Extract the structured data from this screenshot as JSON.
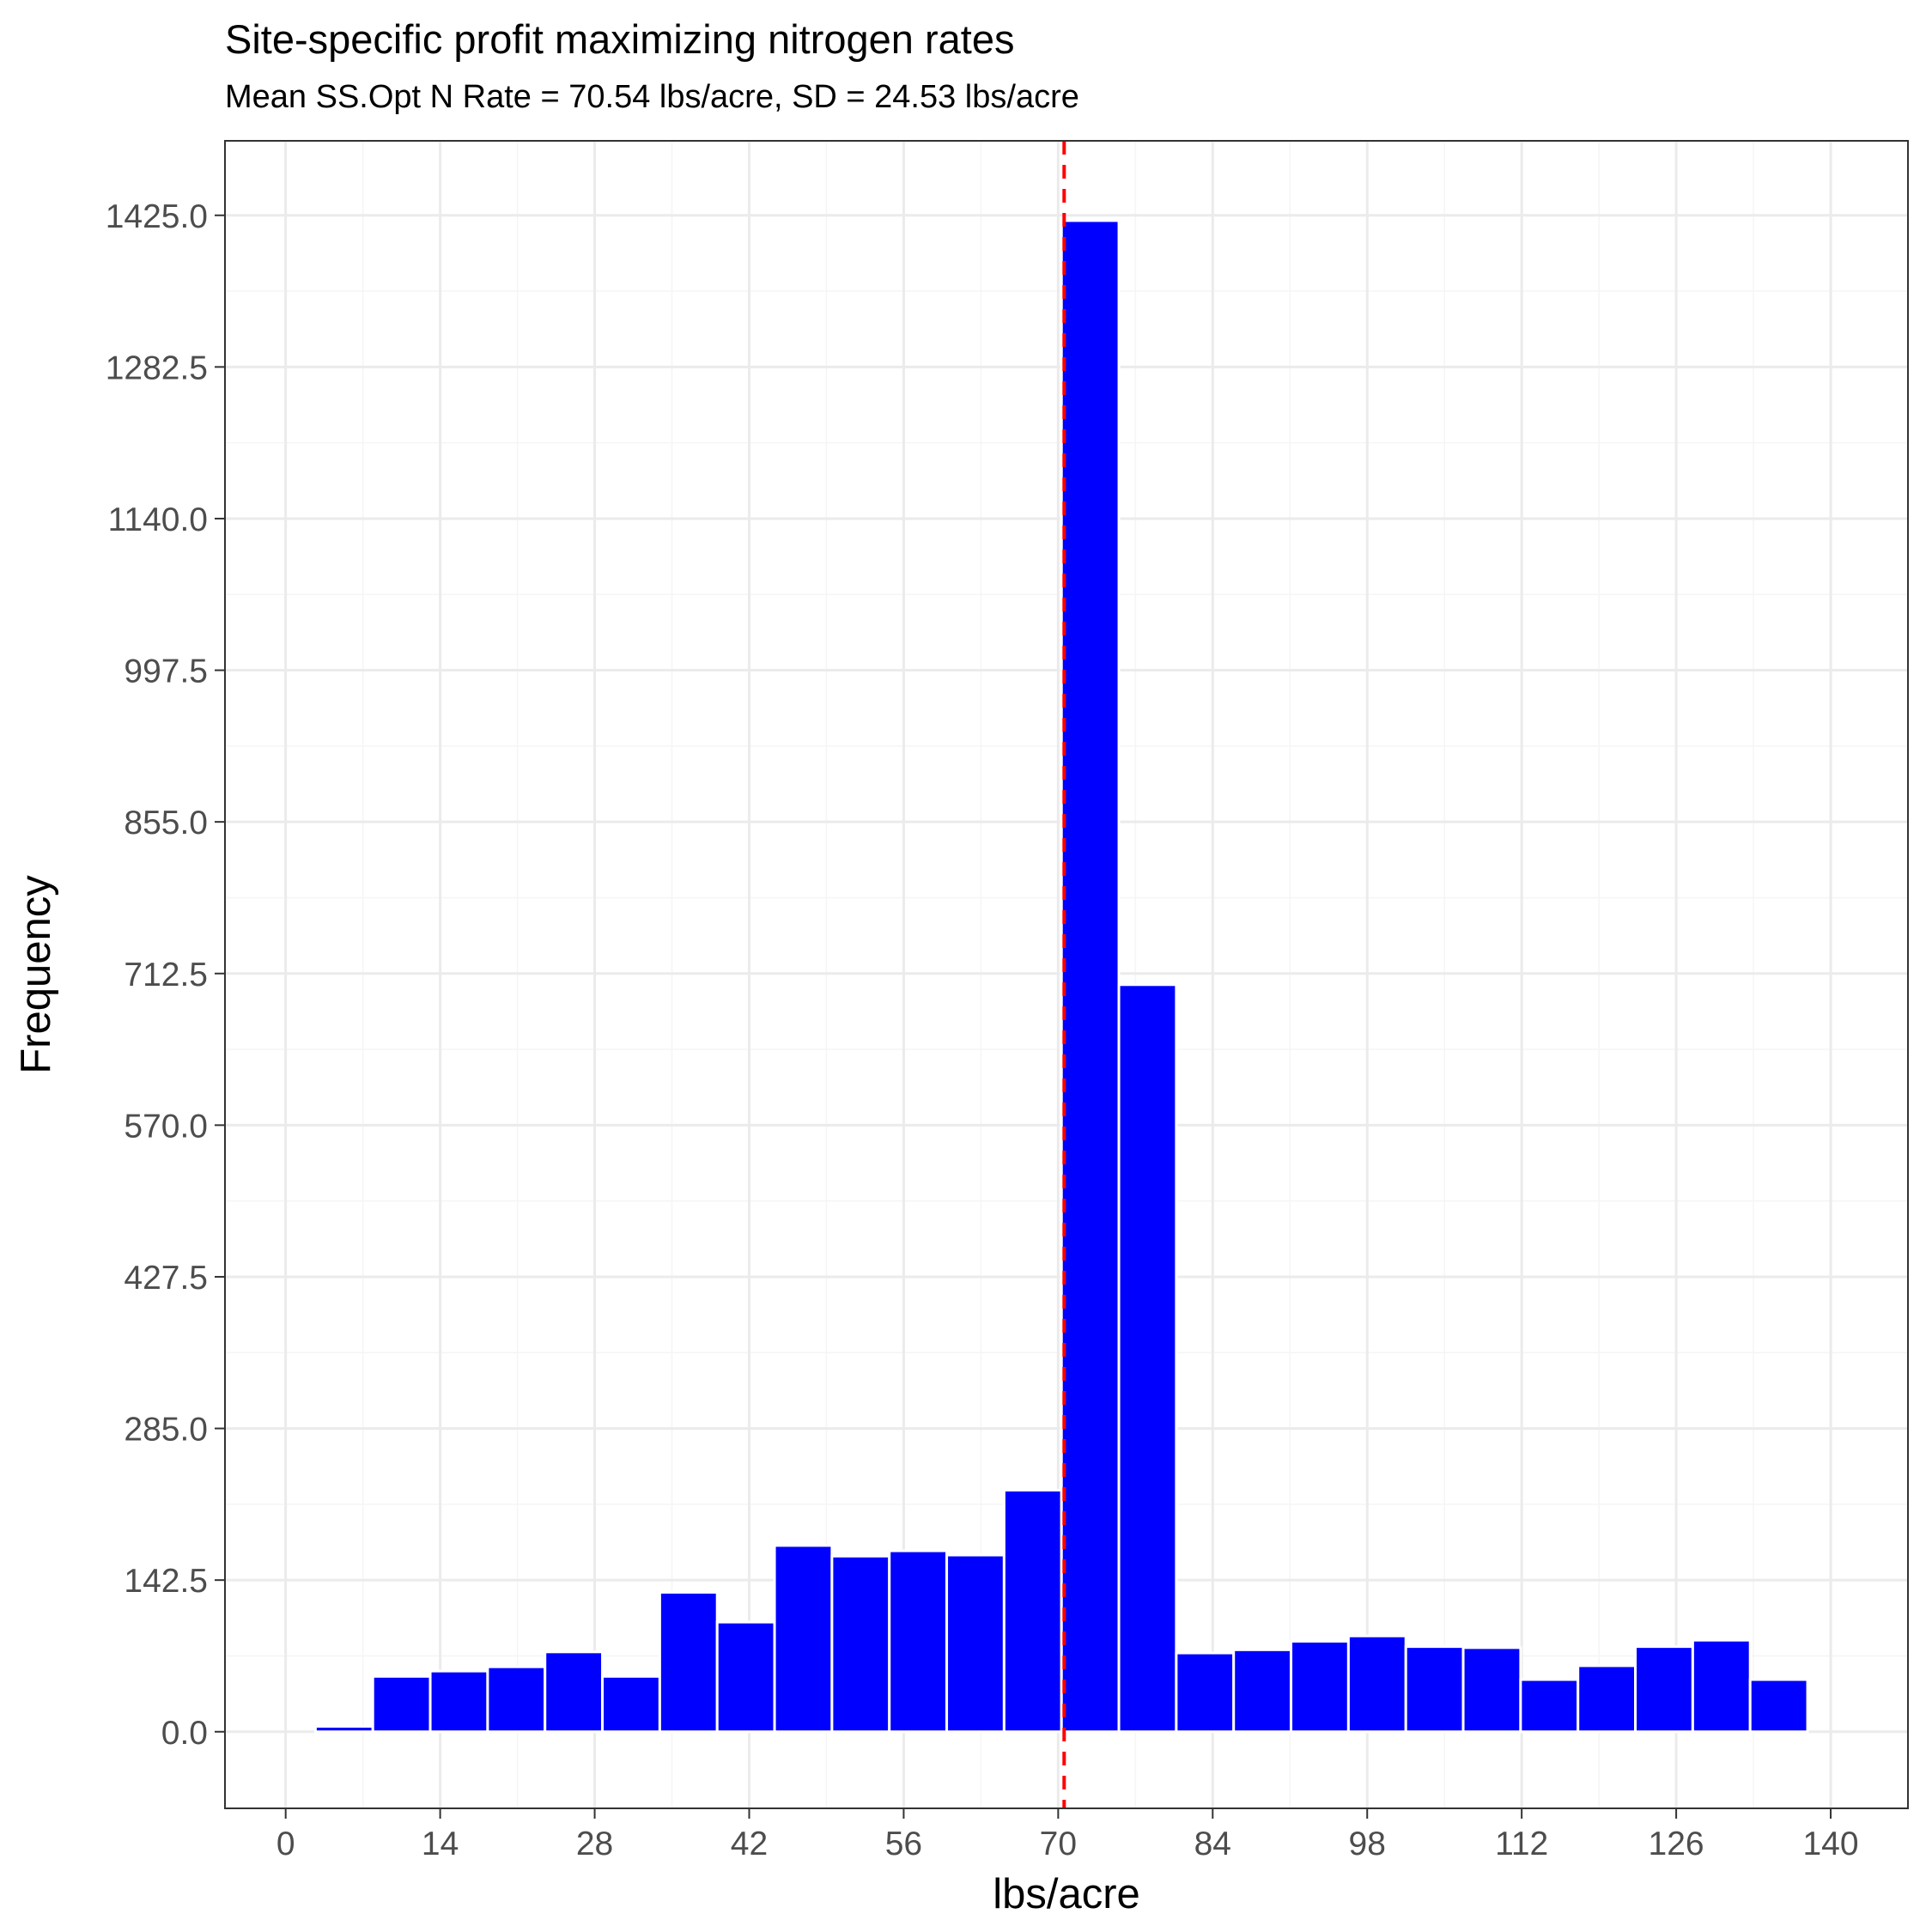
{
  "chart_data": {
    "type": "bar",
    "title": "Site-specific profit maximizing nitrogen rates",
    "subtitle": "Mean SS.Opt N Rate = 70.54 lbs/acre, SD = 24.53 lbs/acre",
    "xlabel": "lbs/acre",
    "ylabel": "Frequency",
    "xlim": [
      -5.5,
      147
    ],
    "ylim": [
      -72,
      1495
    ],
    "x_ticks": [
      0,
      14,
      28,
      42,
      56,
      70,
      84,
      98,
      112,
      126,
      140
    ],
    "y_ticks": [
      0.0,
      142.5,
      285.0,
      427.5,
      570.0,
      712.5,
      855.0,
      997.5,
      1140.0,
      1282.5,
      1425.0
    ],
    "y_tick_labels": [
      "0.0",
      "142.5",
      "285.0",
      "427.5",
      "570.0",
      "712.5",
      "855.0",
      "997.5",
      "1140.0",
      "1282.5",
      "1425.0"
    ],
    "bin_width": 5.2,
    "bin_centers": [
      5.3,
      10.5,
      15.7,
      20.9,
      26.1,
      31.3,
      36.5,
      41.7,
      46.9,
      52.1,
      57.3,
      62.5,
      67.7,
      72.9,
      78.1,
      83.3,
      88.5,
      93.7,
      98.9,
      104.1,
      109.3,
      114.5,
      119.7,
      124.9,
      130.1,
      135.3
    ],
    "values": [
      5,
      52,
      57,
      61,
      75,
      52,
      131,
      103,
      175,
      165,
      170,
      166,
      227,
      1420,
      702,
      74,
      77,
      85,
      90,
      80,
      79,
      49,
      62,
      80,
      86,
      49
    ],
    "vline": {
      "x": 70.54,
      "style": "dashed"
    },
    "grid": true,
    "colors": {
      "bar": "#0000ff",
      "bar_outline": "#ffffff",
      "vline": "#ff0000",
      "grid_major": "#ebebeb",
      "grid_minor": "#f5f5f5",
      "panel_border": "#333333"
    }
  }
}
